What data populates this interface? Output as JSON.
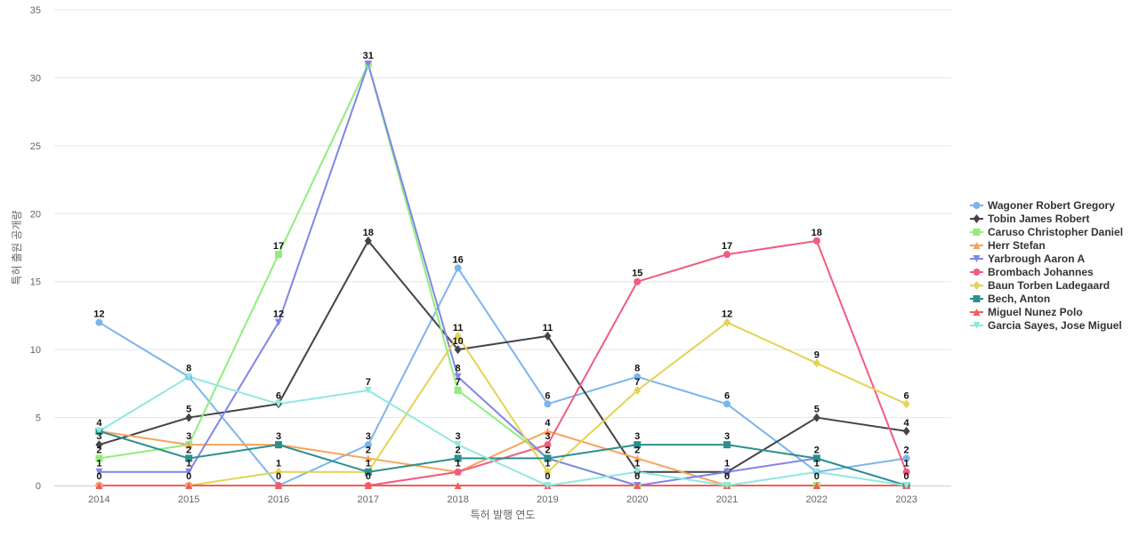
{
  "chart_data": {
    "type": "line",
    "title": "",
    "xlabel": "특허 발행 연도",
    "ylabel": "특허 출원 공개량",
    "x": [
      "2014",
      "2015",
      "2016",
      "2017",
      "2018",
      "2019",
      "2020",
      "2021",
      "2022",
      "2023"
    ],
    "ylim": [
      0,
      35
    ],
    "yticks": [
      0,
      5,
      10,
      15,
      20,
      25,
      30,
      35
    ],
    "grid": true,
    "legend": "right",
    "series": [
      {
        "name": "Wagoner Robert Gregory",
        "color": "#7cb5ec",
        "marker": "circle",
        "values": [
          12,
          8,
          0,
          3,
          16,
          6,
          8,
          6,
          1,
          2
        ]
      },
      {
        "name": "Tobin James Robert",
        "color": "#434348",
        "marker": "diamond",
        "values": [
          3,
          5,
          6,
          18,
          10,
          11,
          1,
          1,
          5,
          4
        ]
      },
      {
        "name": "Caruso Christopher Daniel",
        "color": "#90ed7d",
        "marker": "square",
        "values": [
          2,
          3,
          17,
          31,
          7,
          2,
          0,
          0,
          0,
          0
        ]
      },
      {
        "name": "Herr Stefan",
        "color": "#f7a35c",
        "marker": "triangle",
        "values": [
          4,
          3,
          3,
          2,
          1,
          4,
          2,
          0,
          0,
          0
        ]
      },
      {
        "name": "Yarbrough Aaron A",
        "color": "#8085e9",
        "marker": "triangle-down",
        "values": [
          1,
          1,
          12,
          31,
          8,
          2,
          0,
          1,
          2,
          0
        ]
      },
      {
        "name": "Brombach Johannes",
        "color": "#f15c80",
        "marker": "circle",
        "values": [
          0,
          0,
          0,
          0,
          1,
          3,
          15,
          17,
          18,
          1
        ]
      },
      {
        "name": "Baun Torben Ladegaard",
        "color": "#e4d354",
        "marker": "diamond",
        "values": [
          0,
          0,
          1,
          1,
          11,
          1,
          7,
          12,
          9,
          6
        ]
      },
      {
        "name": "Bech, Anton",
        "color": "#2b908f",
        "marker": "square",
        "values": [
          4,
          2,
          3,
          1,
          2,
          2,
          3,
          3,
          2,
          0
        ]
      },
      {
        "name": "Miguel Nunez Polo",
        "color": "#f45b5b",
        "marker": "triangle",
        "values": [
          0,
          0,
          0,
          0,
          0,
          0,
          0,
          0,
          0,
          0
        ]
      },
      {
        "name": "Garcia Sayes, Jose Miguel",
        "color": "#91e8e1",
        "marker": "triangle-down",
        "values": [
          4,
          8,
          6,
          7,
          3,
          0,
          1,
          0,
          1,
          0
        ]
      }
    ],
    "data_labels": [
      {
        "x": "2014",
        "labels": [
          "12",
          "4",
          "3",
          "2",
          "1",
          "0"
        ]
      },
      {
        "x": "2015",
        "labels": [
          "8",
          "5",
          "3",
          "2",
          "1",
          "0"
        ]
      },
      {
        "x": "2016",
        "labels": [
          "17",
          "12",
          "6",
          "3",
          "1",
          "0"
        ]
      },
      {
        "x": "2017",
        "labels": [
          "31",
          "18",
          "7",
          "3",
          "2",
          "1",
          "0"
        ]
      },
      {
        "x": "2018",
        "labels": [
          "16",
          "11",
          "10",
          "8",
          "7",
          "3",
          "2",
          "1"
        ]
      },
      {
        "x": "2019",
        "labels": [
          "11",
          "6",
          "4",
          "3",
          "2",
          "1",
          "0"
        ]
      },
      {
        "x": "2020",
        "labels": [
          "15",
          "8",
          "7",
          "3",
          "2",
          "1",
          "0"
        ]
      },
      {
        "x": "2021",
        "labels": [
          "17",
          "12",
          "6",
          "3",
          "1",
          "0"
        ]
      },
      {
        "x": "2022",
        "labels": [
          "18",
          "9",
          "5",
          "2",
          "1",
          "0"
        ]
      },
      {
        "x": "2023",
        "labels": [
          "6",
          "4",
          "2",
          "1",
          "0"
        ]
      }
    ]
  }
}
